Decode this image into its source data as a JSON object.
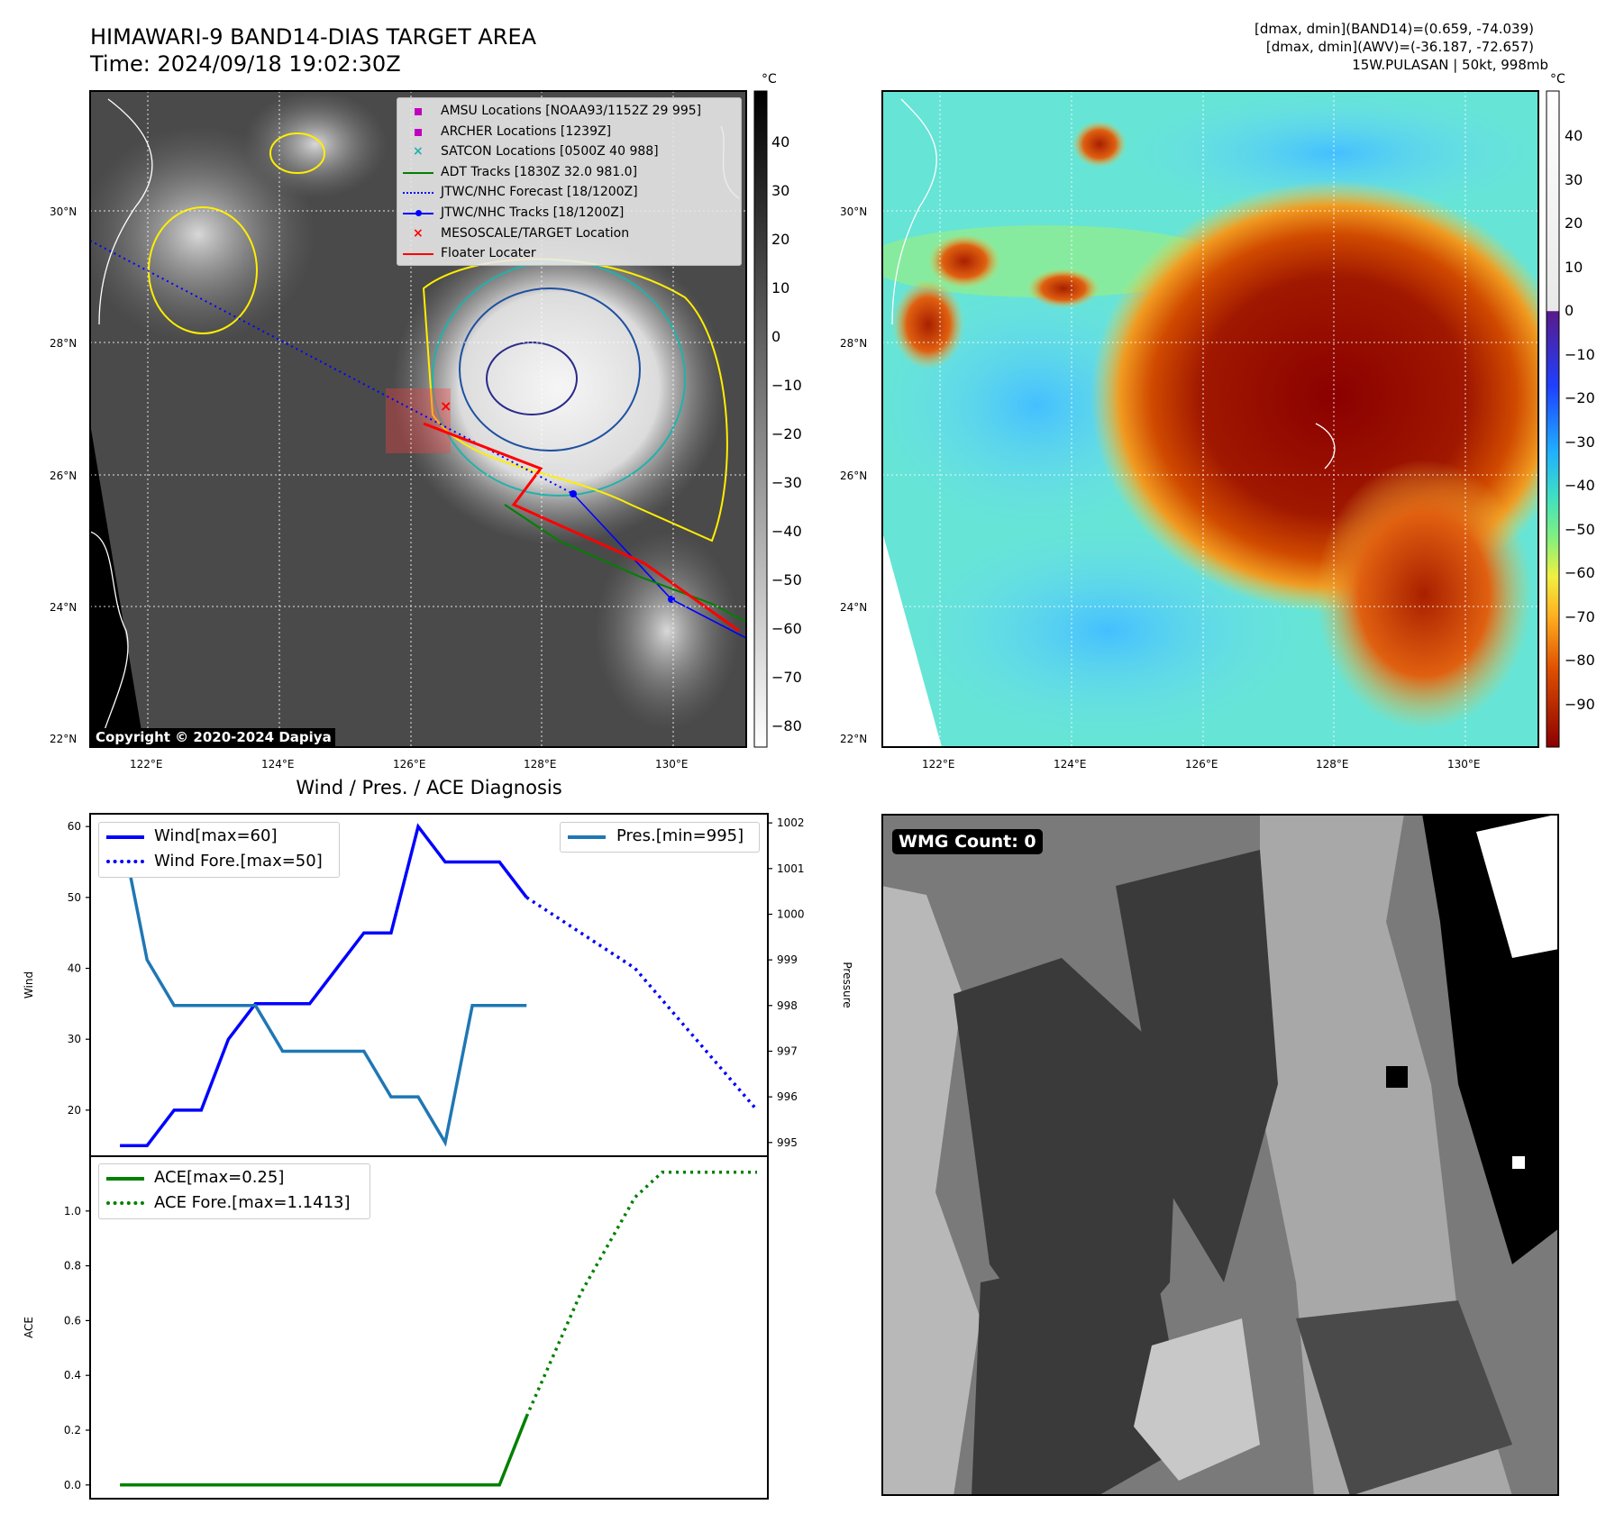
{
  "header": {
    "title_line1": "HIMAWARI-9 BAND14-DIAS TARGET AREA",
    "title_line2": "Time: 2024/09/18 19:02:30Z",
    "stat_line1": "[dmax, dmin](BAND14)=(0.659, -74.039)",
    "stat_line2": "[dmax, dmin](AWV)=(-36.187, -72.657)",
    "stat_line3": "15W.PULASAN | 50kt, 998mb"
  },
  "map": {
    "lat_labels": [
      "30°N",
      "28°N",
      "26°N",
      "24°N",
      "22°N"
    ],
    "lon_labels": [
      "122°E",
      "124°E",
      "126°E",
      "128°E",
      "130°E"
    ],
    "copyright": "Copyright © 2020-2024 Dapiya",
    "unit": "°C",
    "band14_colorbar_ticks": [
      "40",
      "30",
      "20",
      "10",
      "0",
      "−10",
      "−20",
      "−30",
      "−40",
      "−50",
      "−60",
      "−70",
      "−80"
    ],
    "awv_colorbar_ticks": [
      "40",
      "30",
      "20",
      "10",
      "0",
      "−10",
      "−20",
      "−30",
      "−40",
      "−50",
      "−60",
      "−70",
      "−80",
      "−90"
    ],
    "legend": [
      {
        "label": "AMSU Locations [NOAA93/1152Z 29 995]",
        "marker": "square",
        "color": "#c000c0"
      },
      {
        "label": "ARCHER Locations [1239Z]",
        "marker": "square",
        "color": "#c000c0"
      },
      {
        "label": "SATCON Locations [0500Z 40 988]",
        "marker": "x",
        "color": "#20b2aa"
      },
      {
        "label": "ADT Tracks [1830Z 32.0 981.0]",
        "marker": "line",
        "color": "#008000"
      },
      {
        "label": "JTWC/NHC Forecast [18/1200Z]",
        "marker": "dotted",
        "color": "#0000ff"
      },
      {
        "label": "JTWC/NHC Tracks [18/1200Z]",
        "marker": "line-dot",
        "color": "#0000ff"
      },
      {
        "label": "MESOSCALE/TARGET Location",
        "marker": "x",
        "color": "#ff0000"
      },
      {
        "label": "Floater Locater",
        "marker": "line",
        "color": "#ff0000"
      }
    ]
  },
  "diagnosis": {
    "title": "Wind / Pres. / ACE Diagnosis",
    "wind_ylabel": "Wind",
    "pres_ylabel": "Pressure",
    "ace_ylabel": "ACE",
    "wmg_count": "WMG Count: 0"
  },
  "chart_data": [
    {
      "type": "line",
      "title": "Wind / Pres. / ACE Diagnosis",
      "ylabel": "Wind",
      "y2label": "Pressure",
      "ylim": [
        13.5,
        61.8
      ],
      "y2lim": [
        994.7,
        1002.2
      ],
      "xlim": [
        -1.1,
        23.9
      ],
      "yticks": [
        "20",
        "30",
        "40",
        "50",
        "60"
      ],
      "y2ticks": [
        "995",
        "996",
        "997",
        "998",
        "999",
        "1000",
        "1001",
        "1002"
      ],
      "series": [
        {
          "name": "Wind[max=60]",
          "color": "#0000ff",
          "style": "solid",
          "x": [
            0,
            1,
            2,
            3,
            4,
            5,
            6,
            7,
            8,
            9,
            10,
            11,
            12,
            13,
            14,
            15
          ],
          "values": [
            15,
            15,
            20,
            20,
            30,
            35,
            35,
            35,
            40,
            45,
            45,
            60,
            55,
            55,
            55,
            50
          ]
        },
        {
          "name": "Wind Fore.[max=50]",
          "color": "#0000ff",
          "style": "dotted",
          "x": [
            15,
            19,
            23.5
          ],
          "values": [
            50,
            40,
            20
          ]
        },
        {
          "name": "Pres.[min=995]",
          "color": "#1f77b4",
          "style": "solid",
          "axis": "y2",
          "x": [
            0,
            1,
            2,
            3,
            4,
            5,
            6,
            7,
            8,
            9,
            10,
            11,
            12,
            13,
            14,
            15
          ],
          "values": [
            1002,
            999,
            998,
            998,
            998,
            998,
            997,
            997,
            997,
            997,
            996,
            996,
            995,
            998,
            998,
            998
          ]
        }
      ]
    },
    {
      "type": "line",
      "ylabel": "ACE",
      "ylim": [
        -0.05,
        1.2
      ],
      "xlim": [
        -1.1,
        23.9
      ],
      "yticks": [
        "0.0",
        "0.2",
        "0.4",
        "0.6",
        "0.8",
        "1.0"
      ],
      "series": [
        {
          "name": "ACE[max=0.25]",
          "color": "#008000",
          "style": "solid",
          "x": [
            0,
            1,
            2,
            3,
            4,
            5,
            6,
            7,
            8,
            9,
            10,
            11,
            12,
            13,
            14,
            15
          ],
          "values": [
            0,
            0,
            0,
            0,
            0,
            0,
            0,
            0,
            0,
            0,
            0,
            0,
            0,
            0,
            0,
            0.25
          ]
        },
        {
          "name": "ACE Fore.[max=1.1413]",
          "color": "#008000",
          "style": "dotted",
          "x": [
            15,
            17,
            19,
            20,
            21,
            22,
            23.5
          ],
          "values": [
            0.25,
            0.7,
            1.05,
            1.1413,
            1.1413,
            1.1413,
            1.1413
          ]
        }
      ]
    }
  ]
}
